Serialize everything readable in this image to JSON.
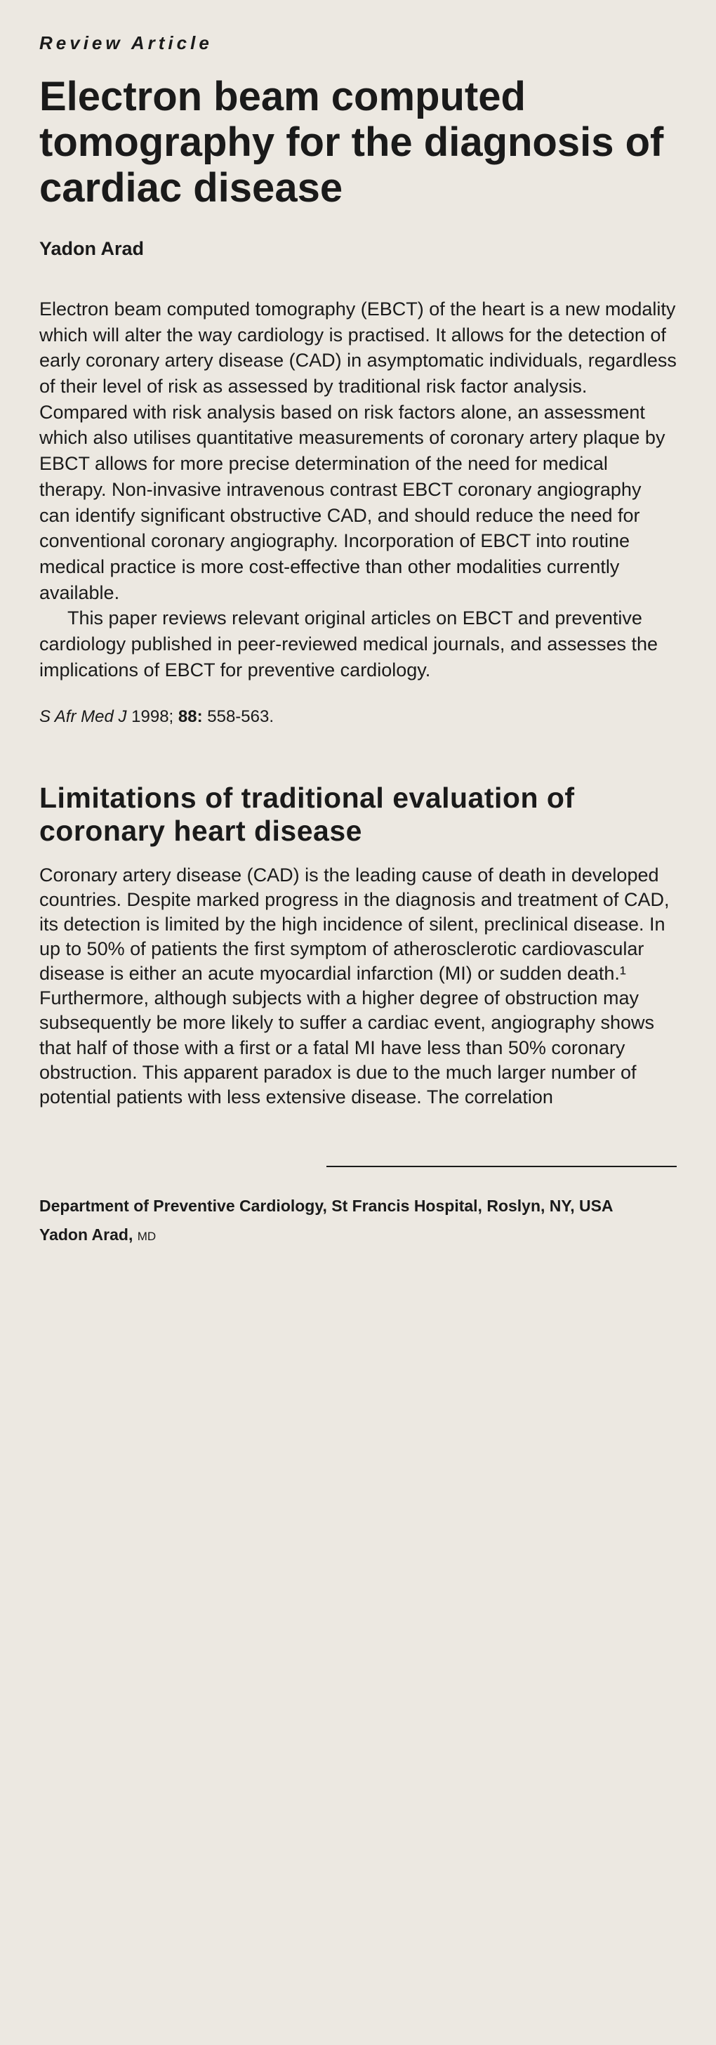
{
  "article_type": "Review Article",
  "title": "Electron beam computed tomography for the diagnosis of cardiac disease",
  "author": "Yadon Arad",
  "abstract": {
    "p1": "Electron beam computed tomography (EBCT) of the heart is a new modality which will alter the way cardiology is practised. It allows for the detection of early coronary artery disease (CAD) in asymptomatic individuals, regardless of their level of risk as assessed by traditional risk factor analysis. Compared with risk analysis based on risk factors alone, an assessment which also utilises quantitative measurements of coronary artery plaque by EBCT allows for more precise determination of the need for medical therapy. Non-invasive intravenous contrast EBCT coronary angiography can identify significant obstructive CAD, and should reduce the need for conventional coronary angiography. Incorporation of EBCT into routine medical practice is more cost-effective than other modalities currently available.",
    "p2": "This paper reviews relevant original articles on EBCT and preventive cardiology published in peer-reviewed medical journals, and assesses the implications of EBCT for preventive cardiology."
  },
  "citation": {
    "journal": "S Afr Med J",
    "year": "1998;",
    "volume": "88:",
    "pages": "558-563."
  },
  "section_heading": "Limitations of traditional evaluation of coronary heart disease",
  "body": "Coronary artery disease (CAD) is the leading cause of death in developed countries. Despite marked progress in the diagnosis and treatment of CAD, its detection is limited by the high incidence of silent, preclinical disease. In up to 50% of patients the first symptom of atherosclerotic cardiovascular disease is either an acute myocardial infarction (MI) or sudden death.¹ Furthermore, although subjects with a higher degree of obstruction may subsequently be more likely to suffer a cardiac event, angiography shows that half of those with a first or a fatal MI have less than 50% coronary obstruction. This apparent paradox is due to the much larger number of potential patients with less extensive disease. The correlation",
  "affiliation": "Department of Preventive Cardiology, St Francis Hospital, Roslyn, NY, USA",
  "author_footer": {
    "name": "Yadon Arad,",
    "degree": "MD"
  },
  "colors": {
    "background": "#ece8e1",
    "text": "#1a1a1a"
  },
  "typography": {
    "base_font": "Helvetica, Arial, sans-serif",
    "article_type_fontsize": 26,
    "title_fontsize": 58,
    "author_fontsize": 27,
    "abstract_fontsize": 27,
    "citation_fontsize": 24,
    "section_heading_fontsize": 41,
    "body_fontsize": 27,
    "affiliation_fontsize": 23
  }
}
